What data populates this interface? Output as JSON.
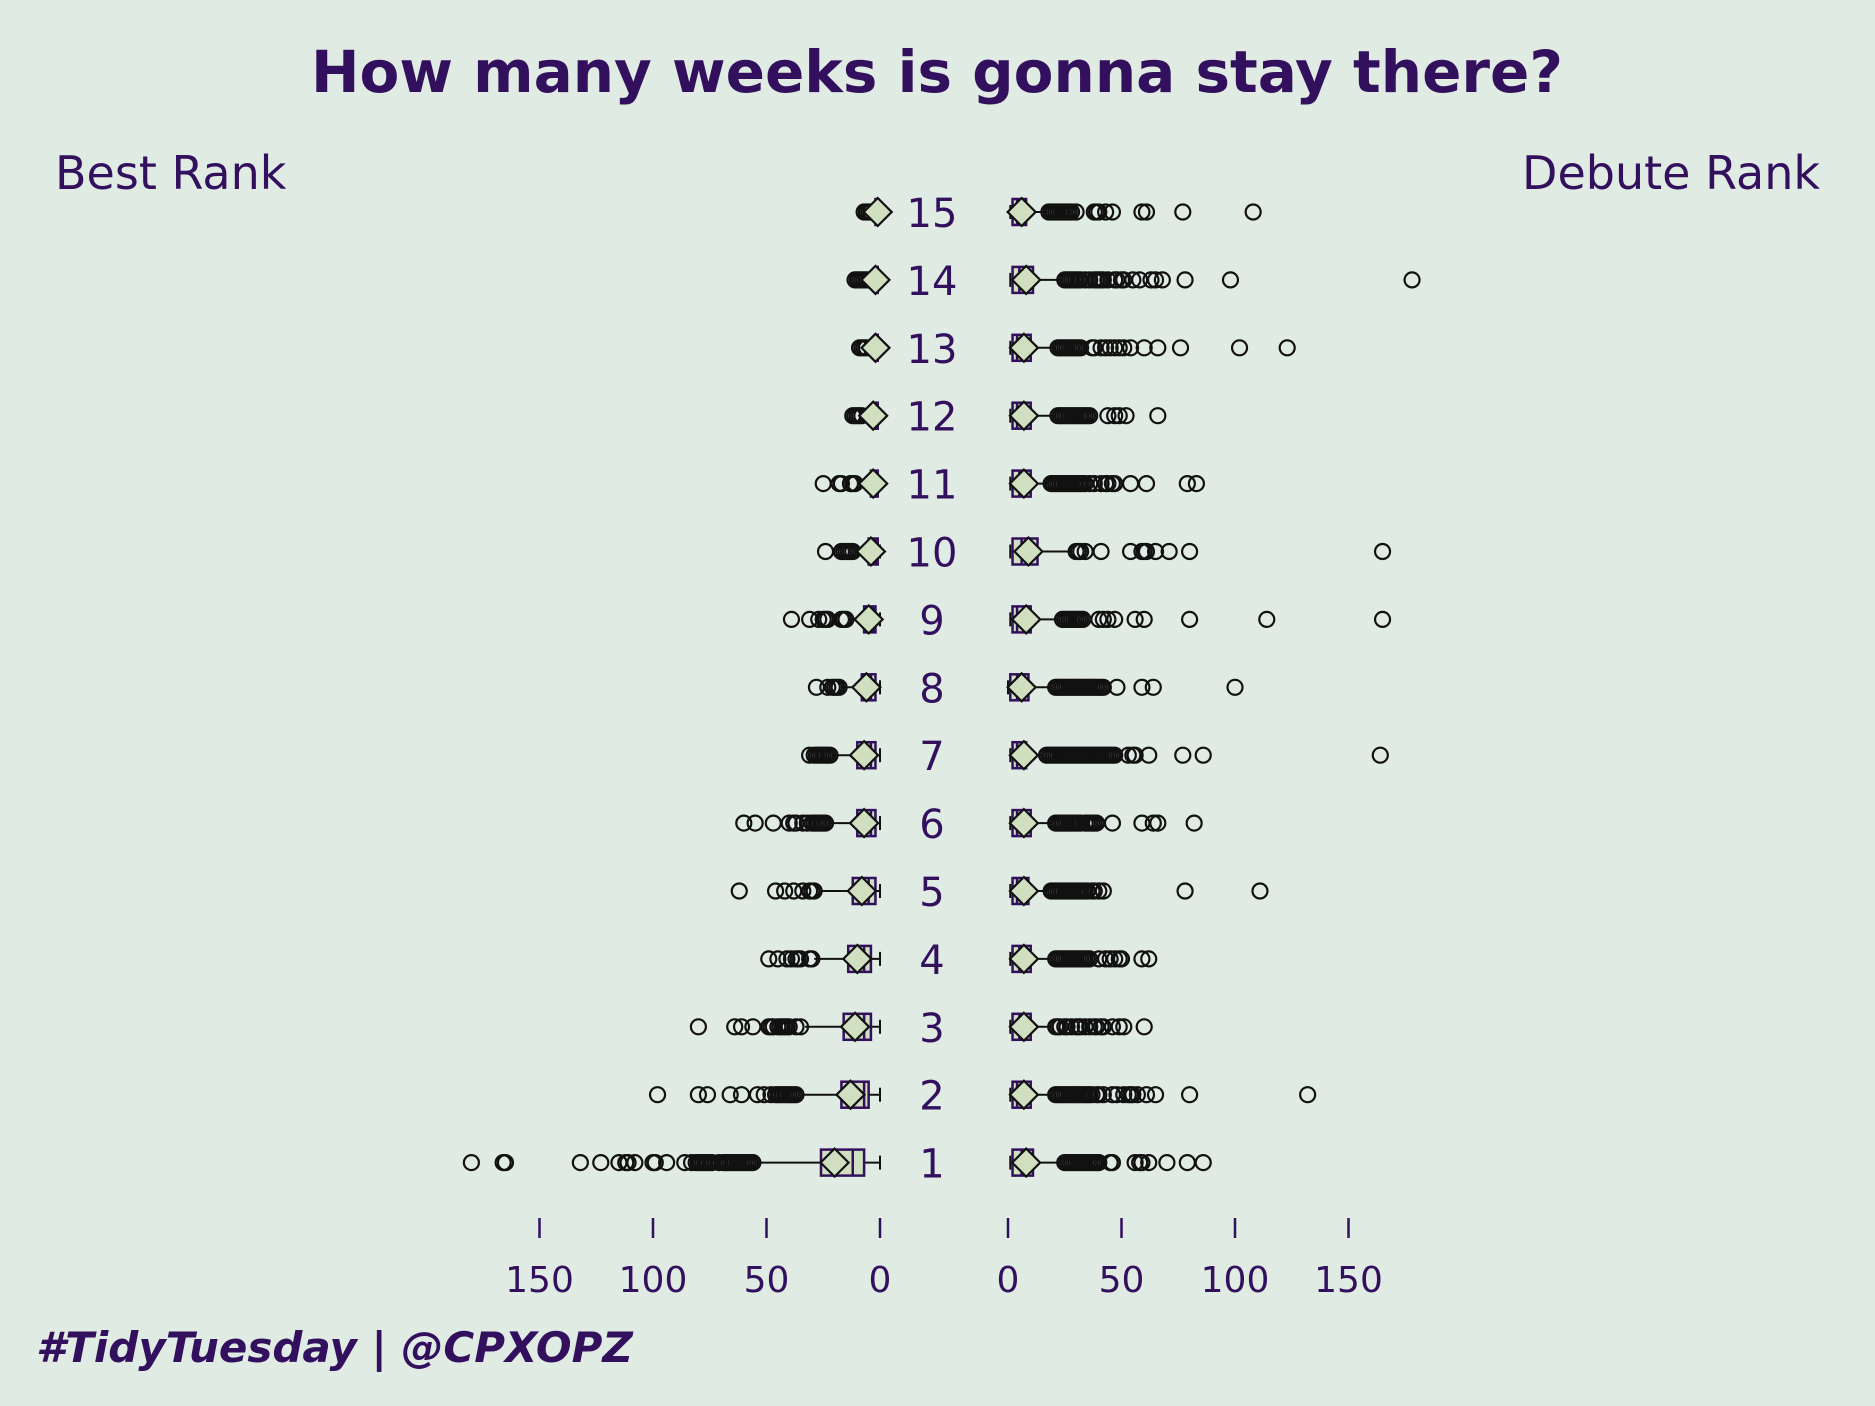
{
  "chart_data": {
    "type": "boxplot",
    "title": "How many weeks is gonna stay there?",
    "caption": "#TidyTuesday | @CPXOPZ",
    "colors": {
      "background": "#e0ece3",
      "text": "#33105e",
      "box_fill": "#cfdfc0",
      "box_stroke": "#33105e",
      "outlier": "#111111"
    },
    "categories": [
      "1",
      "2",
      "3",
      "4",
      "5",
      "6",
      "7",
      "8",
      "9",
      "10",
      "11",
      "12",
      "13",
      "14",
      "15"
    ],
    "xlim": [
      0,
      180
    ],
    "ticks": [
      0,
      50,
      100,
      150
    ],
    "panels": [
      {
        "name": "Best Rank",
        "direction": "reversed",
        "series": [
          {
            "category": "1",
            "min": 0,
            "q1": 7,
            "median": 12,
            "q3": 26,
            "max": 55,
            "mean": 20,
            "outliers": [
              180,
              166,
              165,
              132,
              123,
              115,
              112,
              111,
              108,
              100,
              99,
              94,
              86,
              83,
              81,
              80,
              79,
              78,
              77,
              76,
              75,
              74,
              71,
              69,
              68,
              67,
              66,
              65,
              64,
              63,
              62,
              61,
              60,
              59,
              58,
              57,
              56
            ]
          },
          {
            "category": "2",
            "min": 0,
            "q1": 5,
            "median": 7,
            "q3": 17,
            "max": 35,
            "mean": 13,
            "outliers": [
              98,
              80,
              76,
              66,
              61,
              54,
              51,
              48,
              46,
              45,
              44,
              43,
              42,
              41,
              40,
              39,
              38,
              37
            ]
          },
          {
            "category": "3",
            "min": 0,
            "q1": 4,
            "median": 7,
            "q3": 16,
            "max": 33,
            "mean": 11,
            "outliers": [
              80,
              64,
              61,
              56,
              49,
              48,
              47,
              45,
              44,
              43,
              42,
              41,
              40,
              37,
              35
            ]
          },
          {
            "category": "4",
            "min": 0,
            "q1": 4,
            "median": 7,
            "q3": 14,
            "max": 29,
            "mean": 10,
            "outliers": [
              49,
              45,
              41,
              39,
              37,
              36,
              35,
              31,
              30
            ]
          },
          {
            "category": "5",
            "min": 0,
            "q1": 2,
            "median": 5,
            "q3": 12,
            "max": 26,
            "mean": 8,
            "outliers": [
              62,
              46,
              42,
              38,
              34,
              31,
              30,
              29
            ]
          },
          {
            "category": "6",
            "min": 0,
            "q1": 2,
            "median": 4,
            "q3": 10,
            "max": 23,
            "mean": 7,
            "outliers": [
              60,
              55,
              47,
              40,
              38,
              37,
              34,
              32,
              30,
              29,
              28,
              27,
              26,
              25,
              24
            ]
          },
          {
            "category": "7",
            "min": 0,
            "q1": 2,
            "median": 4,
            "q3": 10,
            "max": 21,
            "mean": 7,
            "outliers": [
              31,
              29,
              28,
              27,
              26,
              25,
              24,
              23,
              22
            ]
          },
          {
            "category": "8",
            "min": 0,
            "q1": 2,
            "median": 4,
            "q3": 8,
            "max": 17,
            "mean": 6,
            "outliers": [
              28,
              23,
              21,
              20,
              19,
              18
            ]
          },
          {
            "category": "9",
            "min": 0,
            "q1": 2,
            "median": 3,
            "q3": 7,
            "max": 14,
            "mean": 5,
            "outliers": [
              39,
              31,
              27,
              25,
              24,
              23,
              17,
              16,
              15
            ]
          },
          {
            "category": "10",
            "min": 0,
            "q1": 1,
            "median": 2,
            "q3": 5,
            "max": 11,
            "mean": 4,
            "outliers": [
              24,
              17,
              16,
              15,
              14,
              13,
              12
            ]
          },
          {
            "category": "11",
            "min": 0,
            "q1": 1,
            "median": 2,
            "q3": 4,
            "max": 10,
            "mean": 3,
            "outliers": [
              25,
              18,
              17,
              13,
              12,
              11
            ]
          },
          {
            "category": "12",
            "min": 0,
            "q1": 1,
            "median": 2,
            "q3": 3,
            "max": 6,
            "mean": 3,
            "outliers": [
              12,
              11,
              10,
              9,
              8
            ]
          },
          {
            "category": "13",
            "min": 0,
            "q1": 1,
            "median": 2,
            "q3": 2,
            "max": 4,
            "mean": 2,
            "outliers": [
              9,
              8,
              7,
              6
            ]
          },
          {
            "category": "14",
            "min": 0,
            "q1": 1,
            "median": 1,
            "q3": 2,
            "max": 4,
            "mean": 2,
            "outliers": [
              11,
              10,
              9,
              8,
              7,
              6,
              5
            ]
          },
          {
            "category": "15",
            "min": 0,
            "q1": 1,
            "median": 1,
            "q3": 2,
            "max": 3,
            "mean": 1,
            "outliers": [
              7,
              6,
              5,
              4
            ]
          }
        ]
      },
      {
        "name": "Debute Rank",
        "direction": "normal",
        "series": [
          {
            "category": "1",
            "min": 1,
            "q1": 2,
            "median": 6,
            "q3": 11,
            "max": 24,
            "mean": 8,
            "outliers": [
              25,
              26,
              27,
              28,
              29,
              30,
              31,
              32,
              33,
              34,
              35,
              36,
              37,
              38,
              39,
              40,
              45,
              46,
              56,
              58,
              59,
              62,
              70,
              79,
              86
            ]
          },
          {
            "category": "2",
            "min": 1,
            "q1": 2,
            "median": 4,
            "q3": 10,
            "max": 20,
            "mean": 7,
            "outliers": [
              21,
              22,
              23,
              24,
              25,
              26,
              27,
              28,
              29,
              30,
              31,
              32,
              33,
              34,
              35,
              36,
              37,
              39,
              40,
              42,
              46,
              48,
              51,
              53,
              54,
              55,
              57,
              61,
              65,
              80,
              132
            ]
          },
          {
            "category": "3",
            "min": 1,
            "q1": 2,
            "median": 5,
            "q3": 10,
            "max": 20,
            "mean": 7,
            "outliers": [
              21,
              22,
              23,
              25,
              26,
              28,
              30,
              31,
              32,
              34,
              36,
              38,
              39,
              41,
              42,
              46,
              49,
              51,
              60
            ]
          },
          {
            "category": "4",
            "min": 1,
            "q1": 2,
            "median": 5,
            "q3": 10,
            "max": 20,
            "mean": 7,
            "outliers": [
              21,
              22,
              23,
              24,
              25,
              26,
              27,
              28,
              29,
              30,
              31,
              32,
              33,
              34,
              35,
              36,
              40,
              43,
              45,
              47,
              49,
              50,
              59,
              62
            ]
          },
          {
            "category": "5",
            "min": 1,
            "q1": 2,
            "median": 4,
            "q3": 9,
            "max": 18,
            "mean": 7,
            "outliers": [
              19,
              20,
              21,
              22,
              23,
              24,
              25,
              26,
              27,
              28,
              29,
              30,
              31,
              32,
              33,
              34,
              35,
              37,
              38,
              40,
              42,
              78,
              111
            ]
          },
          {
            "category": "6",
            "min": 1,
            "q1": 2,
            "median": 4,
            "q3": 10,
            "max": 20,
            "mean": 7,
            "outliers": [
              21,
              22,
              23,
              24,
              25,
              26,
              27,
              28,
              29,
              30,
              31,
              32,
              34,
              35,
              36,
              37,
              38,
              39,
              46,
              59,
              64,
              66,
              82
            ]
          },
          {
            "category": "7",
            "min": 1,
            "q1": 2,
            "median": 4,
            "q3": 8,
            "max": 16,
            "mean": 7,
            "outliers": [
              17,
              18,
              19,
              20,
              21,
              22,
              23,
              24,
              25,
              26,
              27,
              28,
              29,
              30,
              31,
              32,
              33,
              34,
              35,
              36,
              37,
              38,
              39,
              40,
              41,
              42,
              43,
              44,
              45,
              46,
              47,
              53,
              55,
              56,
              62,
              77,
              86,
              164
            ]
          },
          {
            "category": "8",
            "min": 0,
            "q1": 1,
            "median": 4,
            "q3": 9,
            "max": 20,
            "mean": 6,
            "outliers": [
              21,
              22,
              23,
              24,
              25,
              26,
              27,
              28,
              29,
              30,
              31,
              32,
              33,
              34,
              35,
              36,
              37,
              38,
              39,
              40,
              41,
              42,
              48,
              59,
              64,
              100
            ]
          },
          {
            "category": "9",
            "min": 1,
            "q1": 2,
            "median": 4,
            "q3": 10,
            "max": 23,
            "mean": 8,
            "outliers": [
              24,
              25,
              26,
              27,
              28,
              29,
              30,
              31,
              32,
              33,
              40,
              42,
              44,
              47,
              56,
              60,
              80,
              114,
              165
            ]
          },
          {
            "category": "10",
            "min": 1,
            "q1": 2,
            "median": 6,
            "q3": 13,
            "max": 28,
            "mean": 9,
            "outliers": [
              30,
              31,
              32,
              34,
              41,
              54,
              59,
              60,
              61,
              65,
              71,
              80,
              165
            ]
          },
          {
            "category": "11",
            "min": 1,
            "q1": 2,
            "median": 5,
            "q3": 10,
            "max": 18,
            "mean": 7,
            "outliers": [
              19,
              20,
              21,
              22,
              23,
              24,
              25,
              26,
              27,
              28,
              29,
              30,
              31,
              32,
              33,
              34,
              36,
              38,
              41,
              43,
              44,
              46,
              47,
              54,
              61,
              79,
              83
            ]
          },
          {
            "category": "12",
            "min": 1,
            "q1": 2,
            "median": 4,
            "q3": 10,
            "max": 21,
            "mean": 7,
            "outliers": [
              22,
              23,
              24,
              25,
              26,
              27,
              28,
              29,
              30,
              31,
              32,
              33,
              34,
              35,
              36,
              44,
              47,
              49,
              52,
              66
            ]
          },
          {
            "category": "13",
            "min": 1,
            "q1": 2,
            "median": 4,
            "q3": 10,
            "max": 21,
            "mean": 7,
            "outliers": [
              22,
              23,
              24,
              25,
              26,
              27,
              28,
              29,
              30,
              31,
              32,
              37,
              38,
              41,
              43,
              45,
              47,
              49,
              51,
              54,
              60,
              66,
              76,
              102,
              123
            ]
          },
          {
            "category": "14",
            "min": 1,
            "q1": 2,
            "median": 5,
            "q3": 11,
            "max": 24,
            "mean": 8,
            "outliers": [
              25,
              26,
              27,
              28,
              29,
              30,
              31,
              32,
              34,
              36,
              38,
              39,
              40,
              41,
              42,
              44,
              47,
              48,
              50,
              51,
              55,
              58,
              63,
              65,
              68,
              78,
              98,
              178
            ]
          },
          {
            "category": "15",
            "min": 1,
            "q1": 2,
            "median": 4,
            "q3": 8,
            "max": 17,
            "mean": 6,
            "outliers": [
              18,
              19,
              20,
              21,
              22,
              23,
              24,
              25,
              26,
              27,
              28,
              30,
              38,
              39,
              40,
              43,
              46,
              59,
              61,
              77,
              108
            ]
          }
        ]
      }
    ]
  }
}
